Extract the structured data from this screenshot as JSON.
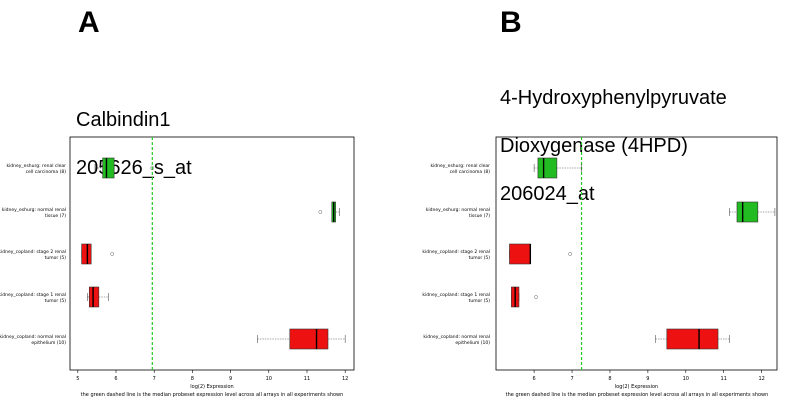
{
  "panels": [
    {
      "letter": "A",
      "title_lines": [
        "Calbindin1",
        "205626_s_at"
      ]
    },
    {
      "letter": "B",
      "title_lines": [
        "4-Hydroxyphenylpyruvate",
        "Dioxygenase (4HPD)",
        "206024_at"
      ]
    }
  ],
  "colors": {
    "green": "#22bb22",
    "red": "#ee1111",
    "median_line": "#22cc22"
  },
  "chart_data": [
    {
      "type": "box",
      "xlabel": "log(2) Expression",
      "footnote": "the green dashed line is the median probeset expression level across all arrays in all experiments shown",
      "xlim": [
        4.9,
        12.1
      ],
      "xticks": [
        5,
        6,
        7,
        8,
        9,
        10,
        11,
        12
      ],
      "reference_line": 6.95,
      "categories": [
        {
          "label": [
            "kidney_eshurg: renal clear",
            "cell carcinoma (8)"
          ],
          "color": "green",
          "whisker_low": 5.45,
          "q1": 5.65,
          "median": 5.75,
          "q3": 5.95,
          "whisker_high": 5.95,
          "outliers": [
            6.95
          ]
        },
        {
          "label": [
            "kidney_eshurg: normal renal",
            "tissue (7)"
          ],
          "color": "green",
          "whisker_low": 11.65,
          "q1": 11.65,
          "median": 11.7,
          "q3": 11.75,
          "whisker_high": 11.85,
          "outliers": [
            11.35
          ]
        },
        {
          "label": [
            "kidney_copland: stage 2 renal",
            "tumor (5)"
          ],
          "color": "red",
          "whisker_low": 5.1,
          "q1": 5.1,
          "median": 5.25,
          "q3": 5.35,
          "whisker_high": 5.35,
          "outliers": [
            5.9
          ]
        },
        {
          "label": [
            "kidney_copland: stage 1 renal",
            "tumor (5)"
          ],
          "color": "red",
          "whisker_low": 5.25,
          "q1": 5.3,
          "median": 5.4,
          "q3": 5.55,
          "whisker_high": 5.8,
          "outliers": []
        },
        {
          "label": [
            "kidney_copland: normal renal",
            "epithelium (10)"
          ],
          "color": "red",
          "whisker_low": 9.7,
          "q1": 10.55,
          "median": 11.25,
          "q3": 11.55,
          "whisker_high": 12.0,
          "outliers": []
        }
      ]
    },
    {
      "type": "box",
      "xlabel": "log(2) Expression",
      "footnote": "the green dashed line is the median probeset expression level across all arrays in all experiments shown",
      "xlim": [
        5.1,
        12.3
      ],
      "xticks": [
        6,
        7,
        8,
        9,
        10,
        11,
        12
      ],
      "reference_line": 7.25,
      "categories": [
        {
          "label": [
            "kidney_eshurg: renal clear",
            "cell carcinoma (8)"
          ],
          "color": "green",
          "whisker_low": 6.0,
          "q1": 6.1,
          "median": 6.25,
          "q3": 6.6,
          "whisker_high": 7.25,
          "outliers": []
        },
        {
          "label": [
            "kidney_eshurg: normal renal",
            "tissue (7)"
          ],
          "color": "green",
          "whisker_low": 11.15,
          "q1": 11.35,
          "median": 11.5,
          "q3": 11.9,
          "whisker_high": 12.35,
          "outliers": []
        },
        {
          "label": [
            "kidney_copland: stage 2 renal",
            "tumor (5)"
          ],
          "color": "red",
          "whisker_low": 5.35,
          "q1": 5.35,
          "median": 5.9,
          "q3": 5.9,
          "whisker_high": 5.9,
          "outliers": [
            6.95
          ]
        },
        {
          "label": [
            "kidney_copland: stage 1 renal",
            "tumor (5)"
          ],
          "color": "red",
          "whisker_low": 5.4,
          "q1": 5.4,
          "median": 5.5,
          "q3": 5.6,
          "whisker_high": 5.6,
          "outliers": [
            6.05
          ]
        },
        {
          "label": [
            "kidney_copland: normal renal",
            "epithelium (10)"
          ],
          "color": "red",
          "whisker_low": 9.2,
          "q1": 9.5,
          "median": 10.35,
          "q3": 10.85,
          "whisker_high": 11.15,
          "outliers": []
        }
      ]
    }
  ]
}
